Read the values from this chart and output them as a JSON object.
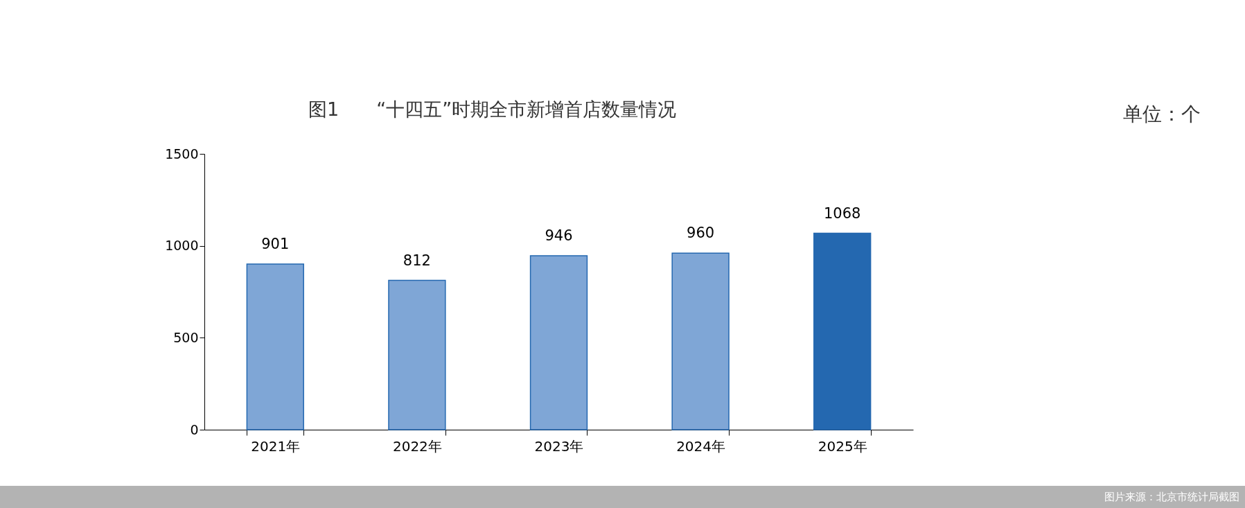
{
  "chart_data": {
    "type": "bar",
    "title": "图1　　“十四五”时期全市新增首店数量情况",
    "categories": [
      "2021年",
      "2022年",
      "2023年",
      "2024年",
      "2025年"
    ],
    "values": [
      901,
      812,
      946,
      960,
      1068
    ],
    "colors": [
      "#7fa6d6",
      "#7fa6d6",
      "#7fa6d6",
      "#7fa6d6",
      "#2468b0"
    ],
    "ylim": [
      0,
      1500
    ],
    "yticks": [
      0,
      500,
      1000,
      1500
    ],
    "grid": false,
    "data_labels": true,
    "annotations": [
      "单位：个",
      "图片来源：北京市统计局截图"
    ]
  }
}
